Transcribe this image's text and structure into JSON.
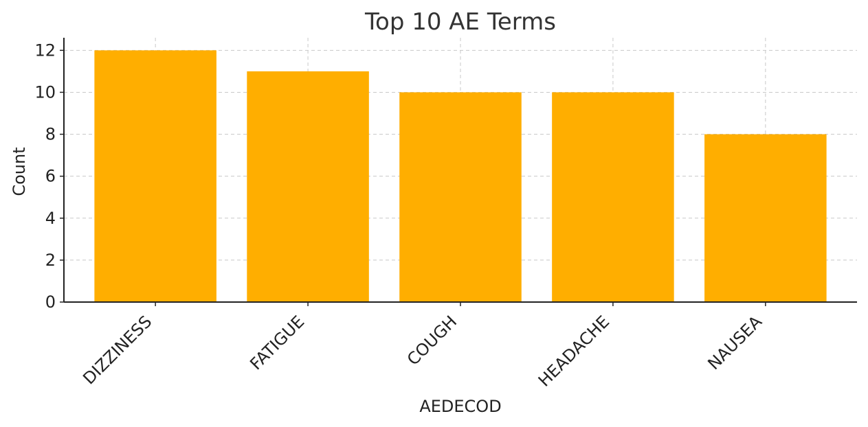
{
  "chart_data": {
    "type": "bar",
    "title": "Top 10 AE Terms",
    "xlabel": "AEDECOD",
    "ylabel": "Count",
    "categories": [
      "DIZZINESS",
      "FATIGUE",
      "COUGH",
      "HEADACHE",
      "NAUSEA"
    ],
    "values": [
      12,
      11,
      10,
      10,
      8
    ],
    "ylim": [
      0,
      12.6
    ],
    "yticks": [
      0,
      2,
      4,
      6,
      8,
      10,
      12
    ],
    "grid": true,
    "bar_color": "#FFAE00"
  }
}
